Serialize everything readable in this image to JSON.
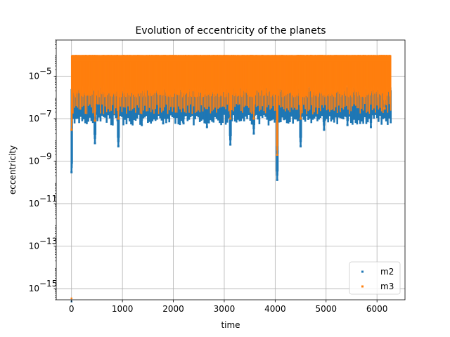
{
  "chart_data": {
    "type": "scatter",
    "title": "Evolution of eccentricity of the planets",
    "xlabel": "time",
    "ylabel": "eccentricity",
    "yscale": "log",
    "xlim": [
      -300,
      6550
    ],
    "ylim": [
      3e-16,
      0.0005
    ],
    "grid": true,
    "legend_position": "bottom-right",
    "x_ticks": [
      {
        "value": 0,
        "label": "0"
      },
      {
        "value": 1000,
        "label": "1000"
      },
      {
        "value": 2000,
        "label": "2000"
      },
      {
        "value": 3000,
        "label": "3000"
      },
      {
        "value": 4000,
        "label": "4000"
      },
      {
        "value": 5000,
        "label": "5000"
      },
      {
        "value": 6000,
        "label": "6000"
      }
    ],
    "y_ticks": [
      {
        "exp": -15,
        "label": "10",
        "sup": "−15"
      },
      {
        "exp": -13,
        "label": "10",
        "sup": "−13"
      },
      {
        "exp": -11,
        "label": "10",
        "sup": "−11"
      },
      {
        "exp": -9,
        "label": "10",
        "sup": "−9"
      },
      {
        "exp": -7,
        "label": "10",
        "sup": "−7"
      },
      {
        "exp": -5,
        "label": "10",
        "sup": "−5"
      }
    ],
    "series": [
      {
        "name": "m2",
        "color": "#1f77b4",
        "x_range": [
          0,
          6270
        ],
        "upper_envelope": 3e-06,
        "typical_lower": 3e-07,
        "initial_min": 2.5e-16,
        "deep_minima": [
          {
            "x": 0,
            "y": 3e-10
          },
          {
            "x": 460,
            "y": 7e-09
          },
          {
            "x": 920,
            "y": 5e-09
          },
          {
            "x": 1380,
            "y": 5e-08
          },
          {
            "x": 1800,
            "y": 6e-08
          },
          {
            "x": 2200,
            "y": 6e-08
          },
          {
            "x": 2660,
            "y": 4e-08
          },
          {
            "x": 3120,
            "y": 6e-09
          },
          {
            "x": 3580,
            "y": 2e-08
          },
          {
            "x": 4040,
            "y": 1.3e-10
          },
          {
            "x": 4500,
            "y": 5e-09
          },
          {
            "x": 4960,
            "y": 3e-08
          },
          {
            "x": 5420,
            "y": 5e-08
          },
          {
            "x": 5880,
            "y": 4e-08
          }
        ]
      },
      {
        "name": "m3",
        "color": "#ff7f0e",
        "x_range": [
          0,
          6270
        ],
        "upper_envelope": 0.0001,
        "typical_lower": 1e-06,
        "initial_min": 3.5e-16,
        "deep_minima": [
          {
            "x": 0,
            "y": 3e-08
          },
          {
            "x": 460,
            "y": 8e-08
          },
          {
            "x": 920,
            "y": 1e-07
          },
          {
            "x": 3120,
            "y": 1e-07
          },
          {
            "x": 3580,
            "y": 1e-07
          },
          {
            "x": 4040,
            "y": 2e-09
          },
          {
            "x": 4500,
            "y": 1e-07
          },
          {
            "x": 6150,
            "y": 3e-07
          }
        ]
      }
    ]
  }
}
